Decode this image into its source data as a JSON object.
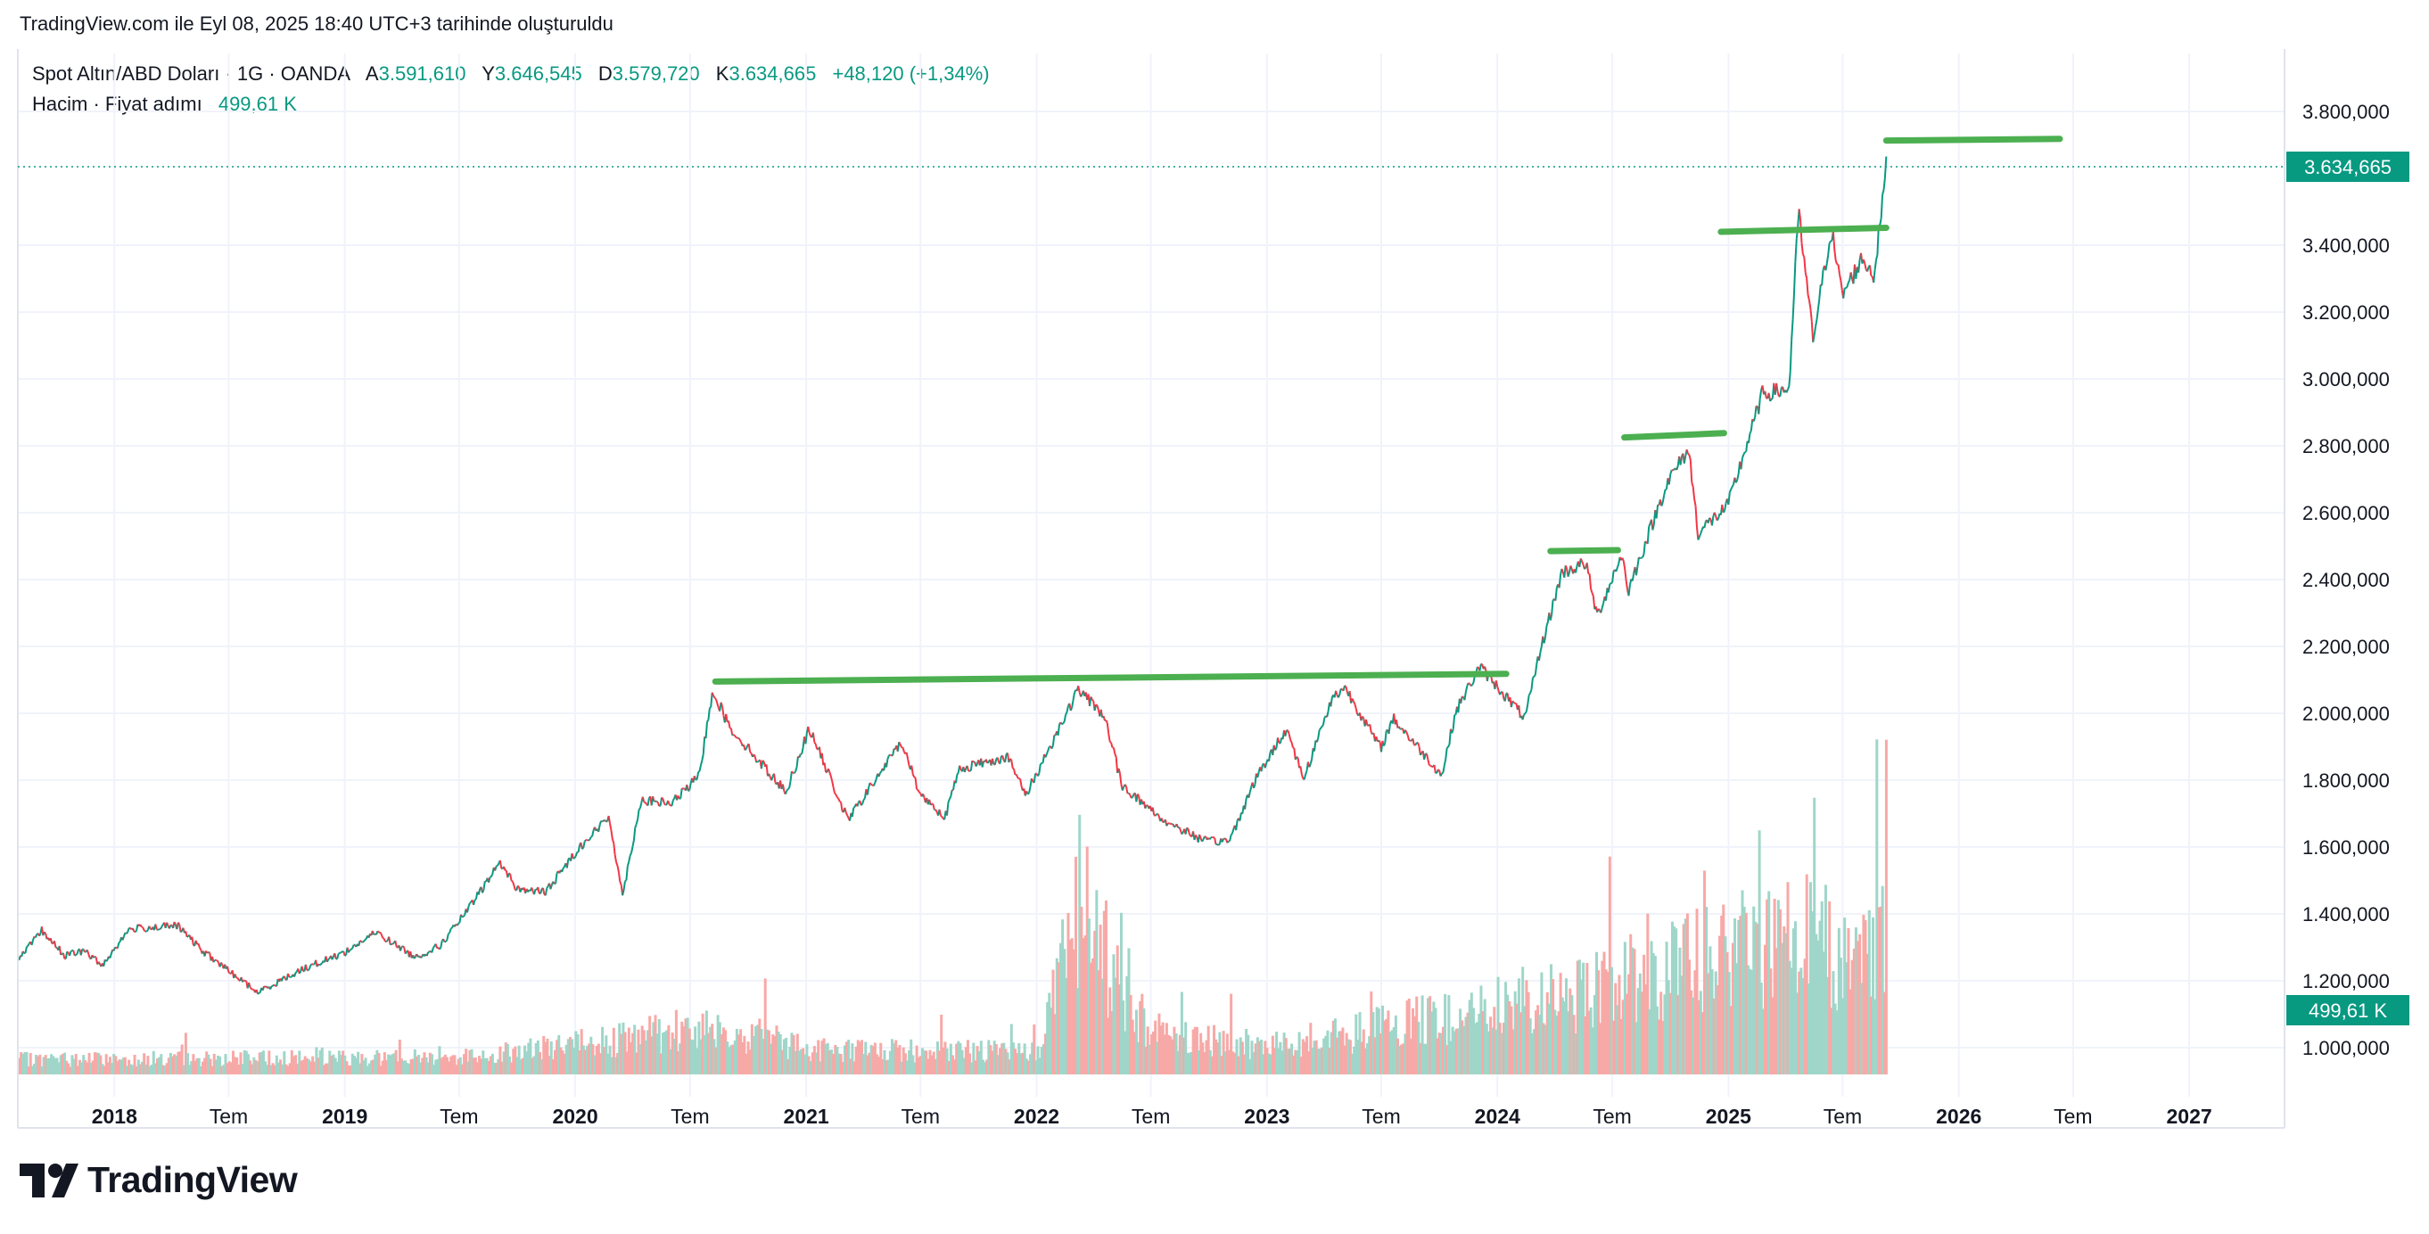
{
  "header": {
    "text": "TradingView.com ile Eyl 08, 2025 18:40 UTC+3 tarihinde oluşturuldu"
  },
  "legend": {
    "symbol": "Spot Altın/ABD Doları · 1G · OANDA",
    "open_label": "A",
    "open": "3.591,610",
    "high_label": "Y",
    "high": "3.646,545",
    "low_label": "D",
    "low": "3.579,720",
    "close_label": "K",
    "close": "3.634,665",
    "change": "+48,120 (+1,34%)",
    "volume_label": "Hacim · Fiyat adımı",
    "volume_value": "499,61 K"
  },
  "logo": {
    "text": "TradingView"
  },
  "colors": {
    "up": "#089981",
    "down": "#f23645",
    "trendline": "#4caf50",
    "grid": "#f0f3fa",
    "volume_up": "#9fd6c9",
    "volume_down": "#f7a9a7"
  },
  "chart_data": {
    "type": "line",
    "symbol": "Spot Altın/ABD Doları",
    "price_axis": {
      "ticks": [
        1000,
        1200,
        1400,
        1600,
        1800,
        2000,
        2200,
        2400,
        2600,
        2800,
        3000,
        3200,
        3400,
        3800
      ],
      "tick_labels": [
        "1.000,000",
        "1.200,000",
        "1.400,000",
        "1.600,000",
        "1.800,000",
        "2.000,000",
        "2.200,000",
        "2.400,000",
        "2.600,000",
        "2.800,000",
        "3.000,000",
        "3.200,000",
        "3.400,000",
        "3.800,000"
      ],
      "range": [
        920,
        3920
      ],
      "last_price": 3634.665,
      "last_price_label": "3.634,665",
      "volume_label": "499,61 K"
    },
    "time_axis": {
      "range": [
        "2017-08-01",
        "2027-06-01"
      ],
      "ticks": [
        {
          "date": "2018-01-01",
          "label": "2018",
          "bold": true
        },
        {
          "date": "2018-07-01",
          "label": "Tem",
          "bold": false
        },
        {
          "date": "2019-01-01",
          "label": "2019",
          "bold": true
        },
        {
          "date": "2019-07-01",
          "label": "Tem",
          "bold": false
        },
        {
          "date": "2020-01-01",
          "label": "2020",
          "bold": true
        },
        {
          "date": "2020-07-01",
          "label": "Tem",
          "bold": false
        },
        {
          "date": "2021-01-01",
          "label": "2021",
          "bold": true
        },
        {
          "date": "2021-07-01",
          "label": "Tem",
          "bold": false
        },
        {
          "date": "2022-01-01",
          "label": "2022",
          "bold": true
        },
        {
          "date": "2022-07-01",
          "label": "Tem",
          "bold": false
        },
        {
          "date": "2023-01-01",
          "label": "2023",
          "bold": true
        },
        {
          "date": "2023-07-01",
          "label": "Tem",
          "bold": false
        },
        {
          "date": "2024-01-01",
          "label": "2024",
          "bold": true
        },
        {
          "date": "2024-07-01",
          "label": "Tem",
          "bold": false
        },
        {
          "date": "2025-01-01",
          "label": "2025",
          "bold": true
        },
        {
          "date": "2025-07-01",
          "label": "Tem",
          "bold": false
        },
        {
          "date": "2026-01-01",
          "label": "2026",
          "bold": true
        },
        {
          "date": "2026-07-01",
          "label": "Tem",
          "bold": false
        },
        {
          "date": "2027-01-01",
          "label": "2027",
          "bold": true
        }
      ]
    },
    "price_series": [
      [
        "2017-08-01",
        1258
      ],
      [
        "2017-09-08",
        1350
      ],
      [
        "2017-10-15",
        1275
      ],
      [
        "2017-11-15",
        1290
      ],
      [
        "2017-12-12",
        1245
      ],
      [
        "2018-01-25",
        1355
      ],
      [
        "2018-04-11",
        1365
      ],
      [
        "2018-05-20",
        1290
      ],
      [
        "2018-08-16",
        1165
      ],
      [
        "2018-10-26",
        1235
      ],
      [
        "2019-01-01",
        1285
      ],
      [
        "2019-02-20",
        1345
      ],
      [
        "2019-04-23",
        1270
      ],
      [
        "2019-06-01",
        1305
      ],
      [
        "2019-07-20",
        1425
      ],
      [
        "2019-09-04",
        1555
      ],
      [
        "2019-10-01",
        1475
      ],
      [
        "2019-11-15",
        1465
      ],
      [
        "2020-01-08",
        1600
      ],
      [
        "2020-02-24",
        1690
      ],
      [
        "2020-03-16",
        1455
      ],
      [
        "2020-04-14",
        1740
      ],
      [
        "2020-06-01",
        1730
      ],
      [
        "2020-07-15",
        1810
      ],
      [
        "2020-08-06",
        2070
      ],
      [
        "2020-09-01",
        1960
      ],
      [
        "2020-11-30",
        1765
      ],
      [
        "2021-01-06",
        1955
      ],
      [
        "2021-03-08",
        1680
      ],
      [
        "2021-06-01",
        1915
      ],
      [
        "2021-06-30",
        1760
      ],
      [
        "2021-08-09",
        1690
      ],
      [
        "2021-09-01",
        1835
      ],
      [
        "2021-11-16",
        1870
      ],
      [
        "2021-12-15",
        1755
      ],
      [
        "2022-03-08",
        2070
      ],
      [
        "2022-04-18",
        1995
      ],
      [
        "2022-05-16",
        1785
      ],
      [
        "2022-07-21",
        1680
      ],
      [
        "2022-09-28",
        1615
      ],
      [
        "2022-11-03",
        1620
      ],
      [
        "2022-12-13",
        1800
      ],
      [
        "2023-02-01",
        1955
      ],
      [
        "2023-02-28",
        1805
      ],
      [
        "2023-04-13",
        2040
      ],
      [
        "2023-05-04",
        2080
      ],
      [
        "2023-06-30",
        1895
      ],
      [
        "2023-07-20",
        1985
      ],
      [
        "2023-10-05",
        1815
      ],
      [
        "2023-10-27",
        2005
      ],
      [
        "2023-12-04",
        2140
      ],
      [
        "2024-02-14",
        1985
      ],
      [
        "2024-03-08",
        2180
      ],
      [
        "2024-04-12",
        2420
      ],
      [
        "2024-05-20",
        2450
      ],
      [
        "2024-06-07",
        2290
      ],
      [
        "2024-07-17",
        2480
      ],
      [
        "2024-07-25",
        2360
      ],
      [
        "2024-09-26",
        2690
      ],
      [
        "2024-10-30",
        2790
      ],
      [
        "2024-11-14",
        2540
      ],
      [
        "2024-12-31",
        2620
      ],
      [
        "2025-02-24",
        2955
      ],
      [
        "2025-04-07",
        2970
      ],
      [
        "2025-04-22",
        3500
      ],
      [
        "2025-05-15",
        3120
      ],
      [
        "2025-06-13",
        3450
      ],
      [
        "2025-06-30",
        3250
      ],
      [
        "2025-08-01",
        3360
      ],
      [
        "2025-08-20",
        3310
      ],
      [
        "2025-09-08",
        3634.665
      ]
    ],
    "volume_series": [
      [
        "2017-08-01",
        12
      ],
      [
        "2019-07-01",
        14
      ],
      [
        "2020-03-16",
        28
      ],
      [
        "2020-08-06",
        40
      ],
      [
        "2021-01-01",
        20
      ],
      [
        "2021-12-31",
        18
      ],
      [
        "2022-03-08",
        140
      ],
      [
        "2022-05-01",
        80
      ],
      [
        "2022-07-01",
        35
      ],
      [
        "2023-01-01",
        22
      ],
      [
        "2023-10-01",
        45
      ],
      [
        "2024-04-01",
        60
      ],
      [
        "2024-10-01",
        85
      ],
      [
        "2025-04-22",
        110
      ],
      [
        "2025-08-01",
        90
      ],
      [
        "2025-09-08",
        120
      ]
    ],
    "trendlines": [
      {
        "start": [
          "2020-08-10",
          2095
        ],
        "end": [
          "2024-01-15",
          2118
        ]
      },
      {
        "start": [
          "2024-03-25",
          2485
        ],
        "end": [
          "2024-07-10",
          2488
        ]
      },
      {
        "start": [
          "2024-07-20",
          2825
        ],
        "end": [
          "2024-12-25",
          2838
        ]
      },
      {
        "start": [
          "2024-12-20",
          3440
        ],
        "end": [
          "2025-09-08",
          3452
        ]
      },
      {
        "start": [
          "2025-09-08",
          3713
        ],
        "end": [
          "2026-06-10",
          3718
        ]
      }
    ]
  }
}
